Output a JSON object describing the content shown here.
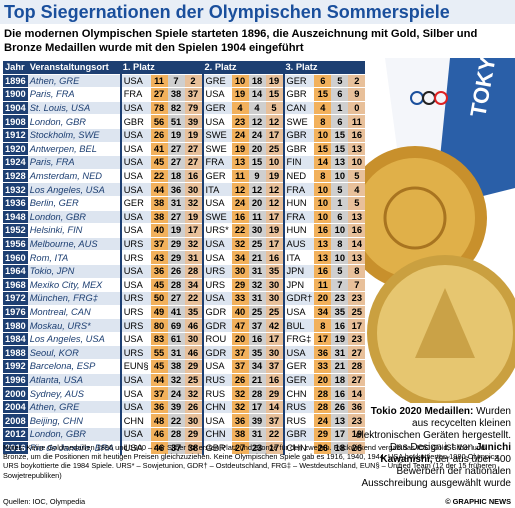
{
  "header": {
    "title": "Top Siegernationen der Olympischen Sommerspiele",
    "subtitle": "Die modernen Olympischen Spiele starteten 1896, die Auszeichnung mit Gold, Silber und Bronze Medaillen wurde mit den Spielen 1904 eingeführt"
  },
  "table": {
    "columns": [
      "Jahr",
      "Veranstaltungsort",
      "1. Platz",
      "2. Platz",
      "3. Platz"
    ],
    "rows": [
      [
        "1896",
        "Athen, GRE",
        [
          "USA",
          11,
          7,
          2
        ],
        [
          "GRE",
          10,
          18,
          19
        ],
        [
          "GER",
          6,
          5,
          2
        ]
      ],
      [
        "1900",
        "Paris, FRA",
        [
          "FRA",
          27,
          38,
          37
        ],
        [
          "USA",
          19,
          14,
          15
        ],
        [
          "GBR",
          15,
          6,
          9
        ]
      ],
      [
        "1904",
        "St. Louis, USA",
        [
          "USA",
          78,
          82,
          79
        ],
        [
          "GER",
          4,
          4,
          5
        ],
        [
          "CAN",
          4,
          1,
          0
        ]
      ],
      [
        "1908",
        "London, GBR",
        [
          "GBR",
          56,
          51,
          39
        ],
        [
          "USA",
          23,
          12,
          12
        ],
        [
          "SWE",
          8,
          6,
          11
        ]
      ],
      [
        "1912",
        "Stockholm, SWE",
        [
          "USA",
          26,
          19,
          19
        ],
        [
          "SWE",
          24,
          24,
          17
        ],
        [
          "GBR",
          10,
          15,
          16
        ]
      ],
      [
        "1920",
        "Antwerpen, BEL",
        [
          "USA",
          41,
          27,
          27
        ],
        [
          "SWE",
          19,
          20,
          25
        ],
        [
          "GBR",
          15,
          15,
          13
        ]
      ],
      [
        "1924",
        "Paris, FRA",
        [
          "USA",
          45,
          27,
          27
        ],
        [
          "FRA",
          13,
          15,
          10
        ],
        [
          "FIN",
          14,
          13,
          10
        ]
      ],
      [
        "1928",
        "Amsterdam, NED",
        [
          "USA",
          22,
          18,
          16
        ],
        [
          "GER",
          11,
          9,
          19
        ],
        [
          "NED",
          8,
          10,
          5
        ]
      ],
      [
        "1932",
        "Los Angeles, USA",
        [
          "USA",
          44,
          36,
          30
        ],
        [
          "ITA",
          12,
          12,
          12
        ],
        [
          "FRA",
          10,
          5,
          4
        ]
      ],
      [
        "1936",
        "Berlin, GER",
        [
          "GER",
          38,
          31,
          32
        ],
        [
          "USA",
          24,
          20,
          12
        ],
        [
          "HUN",
          10,
          1,
          5
        ]
      ],
      [
        "1948",
        "London, GBR",
        [
          "USA",
          38,
          27,
          19
        ],
        [
          "SWE",
          16,
          11,
          17
        ],
        [
          "FRA",
          10,
          6,
          13
        ]
      ],
      [
        "1952",
        "Helsinki, FIN",
        [
          "USA",
          40,
          19,
          17
        ],
        [
          "URS*",
          22,
          30,
          19
        ],
        [
          "HUN",
          16,
          10,
          16
        ]
      ],
      [
        "1956",
        "Melbourne, AUS",
        [
          "URS",
          37,
          29,
          32
        ],
        [
          "USA",
          32,
          25,
          17
        ],
        [
          "AUS",
          13,
          8,
          14
        ]
      ],
      [
        "1960",
        "Rom, ITA",
        [
          "URS",
          43,
          29,
          31
        ],
        [
          "USA",
          34,
          21,
          16
        ],
        [
          "ITA",
          13,
          10,
          13
        ]
      ],
      [
        "1964",
        "Tokio, JPN",
        [
          "USA",
          36,
          26,
          28
        ],
        [
          "URS",
          30,
          31,
          35
        ],
        [
          "JPN",
          16,
          5,
          8
        ]
      ],
      [
        "1968",
        "Mexiko City, MEX",
        [
          "USA",
          45,
          28,
          34
        ],
        [
          "URS",
          29,
          32,
          30
        ],
        [
          "JPN",
          11,
          7,
          7
        ]
      ],
      [
        "1972",
        "München, FRG‡",
        [
          "URS",
          50,
          27,
          22
        ],
        [
          "USA",
          33,
          31,
          30
        ],
        [
          "GDR†",
          20,
          23,
          23
        ]
      ],
      [
        "1976",
        "Montreal, CAN",
        [
          "URS",
          49,
          41,
          35
        ],
        [
          "GDR",
          40,
          25,
          25
        ],
        [
          "USA",
          34,
          35,
          25
        ]
      ],
      [
        "1980",
        "Moskau, URS*",
        [
          "URS",
          80,
          69,
          46
        ],
        [
          "GDR",
          47,
          37,
          42
        ],
        [
          "BUL",
          8,
          16,
          17
        ]
      ],
      [
        "1984",
        "Los Angeles, USA",
        [
          "USA",
          83,
          61,
          30
        ],
        [
          "ROU",
          20,
          16,
          17
        ],
        [
          "FRG‡",
          17,
          19,
          23
        ]
      ],
      [
        "1988",
        "Seoul, KOR",
        [
          "URS",
          55,
          31,
          46
        ],
        [
          "GDR",
          37,
          35,
          30
        ],
        [
          "USA",
          36,
          31,
          27
        ]
      ],
      [
        "1992",
        "Barcelona, ESP",
        [
          "EUN§",
          45,
          38,
          29
        ],
        [
          "USA",
          37,
          34,
          37
        ],
        [
          "GER",
          33,
          21,
          28
        ]
      ],
      [
        "1996",
        "Atlanta, USA",
        [
          "USA",
          44,
          32,
          25
        ],
        [
          "RUS",
          26,
          21,
          16
        ],
        [
          "GER",
          20,
          18,
          27
        ]
      ],
      [
        "2000",
        "Sydney, AUS",
        [
          "USA",
          37,
          24,
          32
        ],
        [
          "RUS",
          32,
          28,
          29
        ],
        [
          "CHN",
          28,
          16,
          14
        ]
      ],
      [
        "2004",
        "Athen, GRE",
        [
          "USA",
          36,
          39,
          26
        ],
        [
          "CHN",
          32,
          17,
          14
        ],
        [
          "RUS",
          28,
          26,
          36
        ]
      ],
      [
        "2008",
        "Beijing, CHN",
        [
          "CHN",
          48,
          22,
          30
        ],
        [
          "USA",
          36,
          39,
          37
        ],
        [
          "RUS",
          24,
          13,
          23
        ]
      ],
      [
        "2012",
        "London, GBR",
        [
          "USA",
          46,
          28,
          29
        ],
        [
          "CHN",
          38,
          31,
          22
        ],
        [
          "GBR",
          29,
          17,
          19
        ]
      ],
      [
        "2016",
        "Rio de Janeiro, BRA",
        [
          "USA",
          46,
          37,
          38
        ],
        [
          "GBR",
          27,
          23,
          17
        ],
        [
          "CHN",
          26,
          18,
          26
        ]
      ]
    ]
  },
  "caption": {
    "lead": "Tokio 2020 Medaillen:",
    "text1": "Wurden aus recycelten kleinen elektronischen Geräten hergestellt. Das Design ist von",
    "name": "Junichi Kawanishi,",
    "text2": "der aus über 400 Bewerbern der nationalen Ausschreibung ausgewählt wurde"
  },
  "notes": "Notes: Keine Goldmedaillen 1896 und 1900 – nur Silber für ersten Platz und Bronze für den zweiten. Rückwirkend vergab das IOC Gold, Silber und Bronze, um die Positionen mit heutigen Preisen gleichzuziehen. Keine Olympischen Spiele gab es 1916, 1940, 1944. USA boykottierten 1980 Olympics, URS boykottierte die 1984 Spiele. URS* – Sowjetunion, GDR† – Ostdeutschland, FRG‡ – Westdeutschland, EUN§ – Unified Team (12 der 15 früheren Sowjetrepubliken)",
  "source": "Quellen: IOC, Olympedia",
  "copyright": "© GRAPHIC NEWS"
}
